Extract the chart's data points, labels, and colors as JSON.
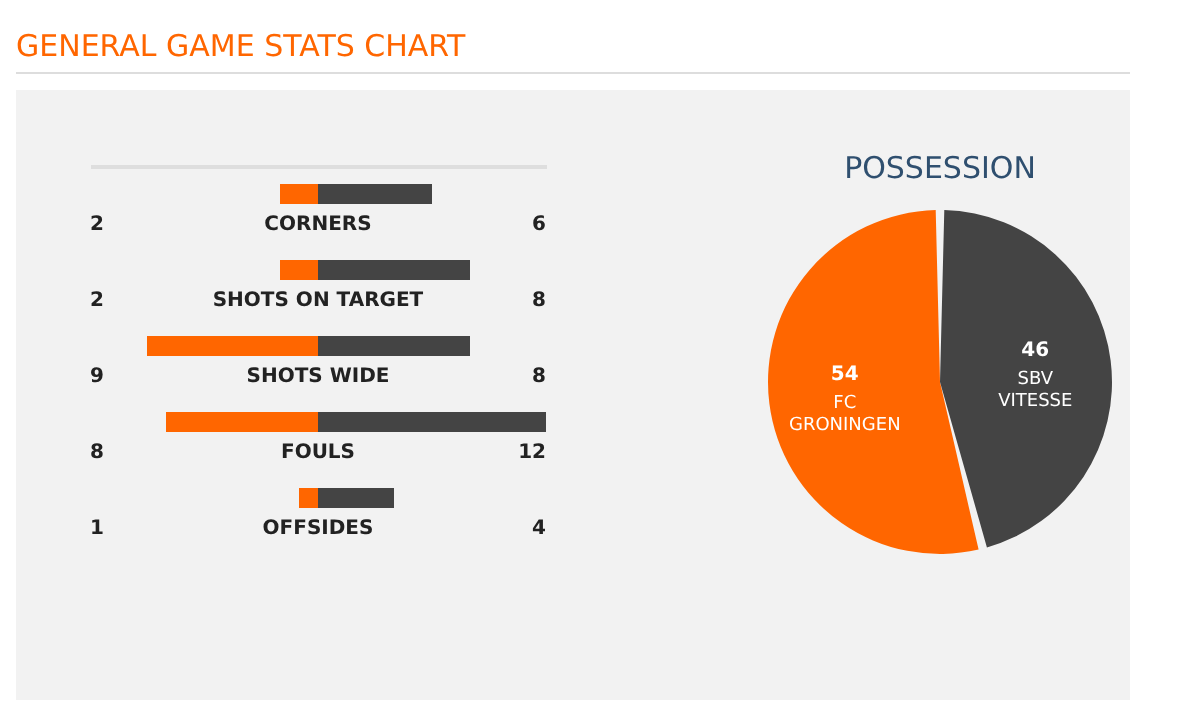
{
  "chart_data": [
    {
      "type": "bar",
      "title": "GENERAL GAME STATS CHART",
      "orientation": "horizontal",
      "categories": [
        "CORNERS",
        "SHOTS ON TARGET",
        "SHOTS WIDE",
        "FOULS",
        "OFFSIDES"
      ],
      "xlim": [
        12,
        0
      ],
      "data_labels": true,
      "series": [
        {
          "color": "#ff6600",
          "values": [
            2,
            2,
            9,
            8,
            1
          ]
        }
      ]
    },
    {
      "type": "bar",
      "orientation": "horizontal",
      "categories": [
        null,
        null,
        null,
        null,
        null
      ],
      "xlim": [
        0,
        12
      ],
      "data_labels": true,
      "series": [
        {
          "color": "#444444",
          "values": [
            6,
            8,
            8,
            12,
            4
          ]
        }
      ]
    },
    {
      "type": "pie",
      "title": "POSSESSION",
      "categories": [
        "FC GRONINGEN",
        "SBV VITESSE"
      ],
      "values": [
        54,
        46
      ],
      "colors": [
        "#ff6600",
        "#444444"
      ],
      "data_labels": true
    }
  ]
}
